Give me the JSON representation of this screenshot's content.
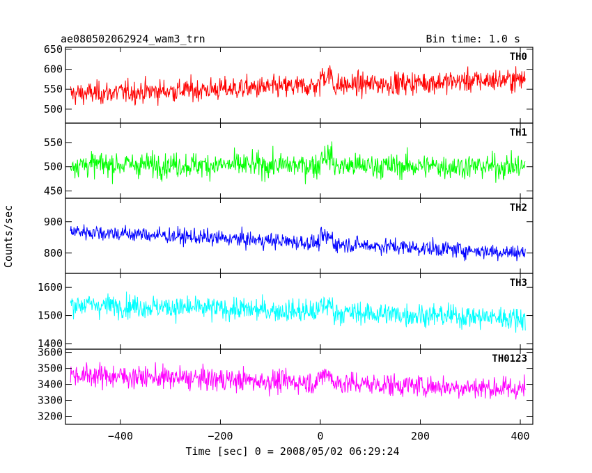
{
  "header": {
    "title": "ae080502062924_wam3_trn",
    "bin_time": "Bin time: 1.0 s"
  },
  "chart_data": {
    "type": "line",
    "title": "ae080502062924_wam3_trn",
    "subtitle": "Bin time: 1.0 s",
    "xlabel": "Time [sec] 0 = 2008/05/02 06:29:24",
    "ylabel": "Counts/sec",
    "xlim": [
      -510,
      425
    ],
    "x_ticks": [
      -400,
      -200,
      0,
      200,
      400
    ],
    "x_tick_labels": [
      "−400",
      "−200",
      "0",
      "200",
      "400"
    ],
    "x_range": [
      -500,
      410
    ],
    "bin_time_s": 1.0,
    "grid": false,
    "panels": [
      {
        "name": "TH0",
        "color": "#ff0000",
        "ylim": [
          465,
          655
        ],
        "y_ticks": [
          500,
          550,
          600,
          650
        ],
        "mean_start": 538,
        "mean_end": 575,
        "noise": 28,
        "bump": 25
      },
      {
        "name": "TH1",
        "color": "#00ff00",
        "ylim": [
          435,
          590
        ],
        "y_ticks": [
          450,
          500,
          550
        ],
        "mean_start": 505,
        "mean_end": 500,
        "noise": 25,
        "bump": 20
      },
      {
        "name": "TH2",
        "color": "#0000ff",
        "ylim": [
          735,
          975
        ],
        "y_ticks": [
          800,
          900
        ],
        "mean_start": 870,
        "mean_end": 800,
        "noise": 25,
        "bump": 20
      },
      {
        "name": "TH3",
        "color": "#00ffff",
        "ylim": [
          1380,
          1650
        ],
        "y_ticks": [
          1400,
          1500,
          1600
        ],
        "mean_start": 1540,
        "mean_end": 1490,
        "noise": 40,
        "bump": 25
      },
      {
        "name": "TH0123",
        "color": "#ff00ff",
        "ylim": [
          3150,
          3620
        ],
        "y_ticks": [
          3200,
          3300,
          3400,
          3500,
          3600
        ],
        "mean_start": 3460,
        "mean_end": 3370,
        "noise": 70,
        "bump": 50
      }
    ]
  }
}
